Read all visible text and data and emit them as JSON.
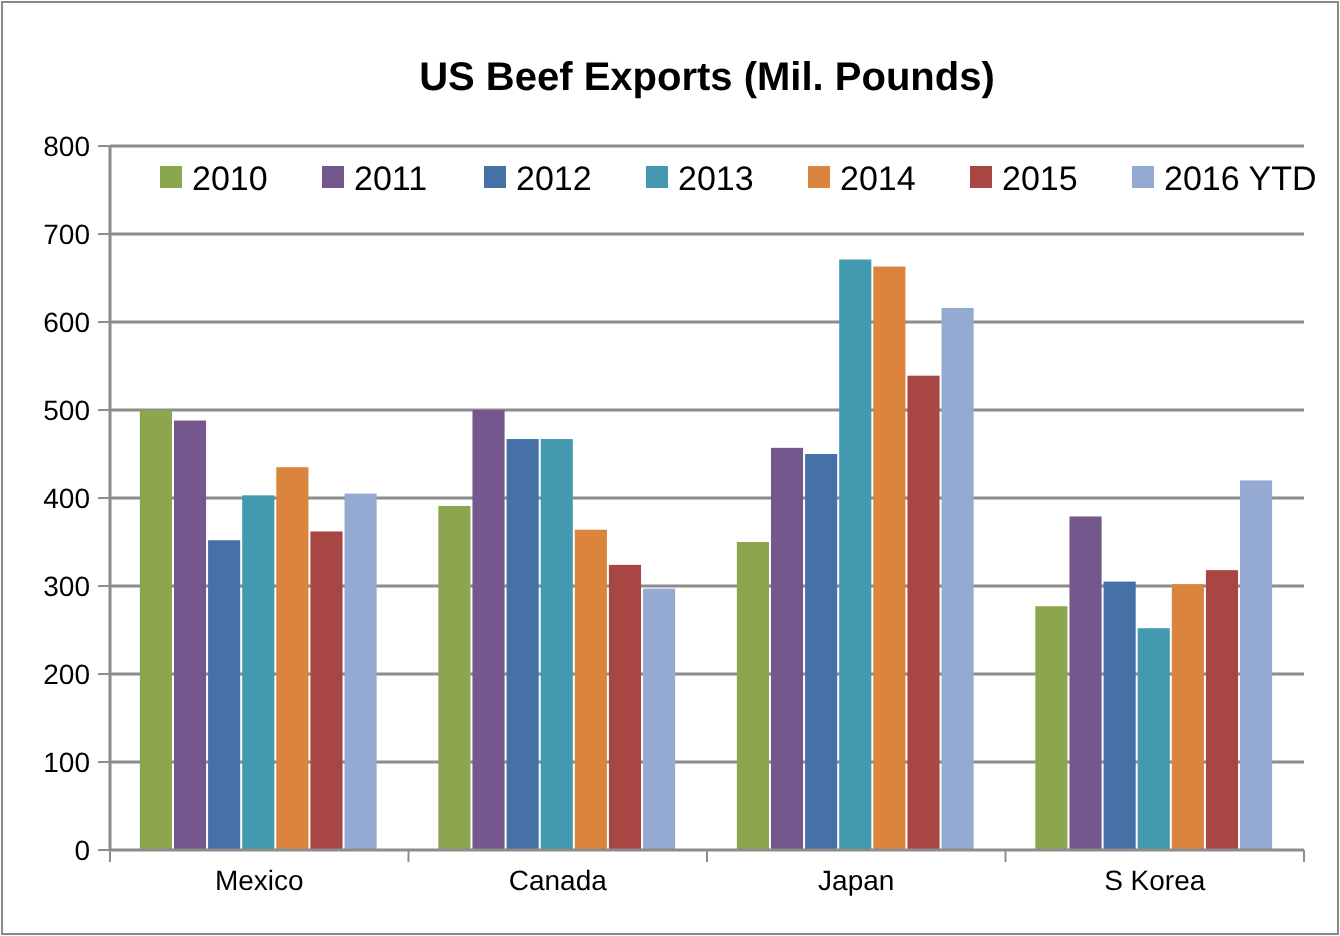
{
  "chart_data": {
    "type": "bar",
    "title": "US Beef Exports (Mil. Pounds)",
    "categories": [
      "Mexico",
      "Canada",
      "Japan",
      "S Korea"
    ],
    "series": [
      {
        "name": "2010",
        "color": "#8ba64e",
        "values": [
          500,
          391,
          350,
          277
        ]
      },
      {
        "name": "2011",
        "color": "#73578d",
        "values": [
          488,
          500,
          457,
          379
        ]
      },
      {
        "name": "2012",
        "color": "#4571a6",
        "values": [
          352,
          467,
          450,
          305
        ]
      },
      {
        "name": "2013",
        "color": "#4399b0",
        "values": [
          403,
          467,
          671,
          252
        ]
      },
      {
        "name": "2014",
        "color": "#db843d",
        "values": [
          435,
          364,
          663,
          302
        ]
      },
      {
        "name": "2015",
        "color": "#a84644",
        "values": [
          362,
          324,
          539,
          318
        ]
      },
      {
        "name": "2016 YTD",
        "color": "#94aad2",
        "values": [
          405,
          297,
          616,
          420
        ]
      }
    ],
    "ylim": [
      0,
      800
    ],
    "yticks": [
      0,
      100,
      200,
      300,
      400,
      500,
      600,
      700,
      800
    ],
    "grid": "y",
    "legend": "top"
  }
}
